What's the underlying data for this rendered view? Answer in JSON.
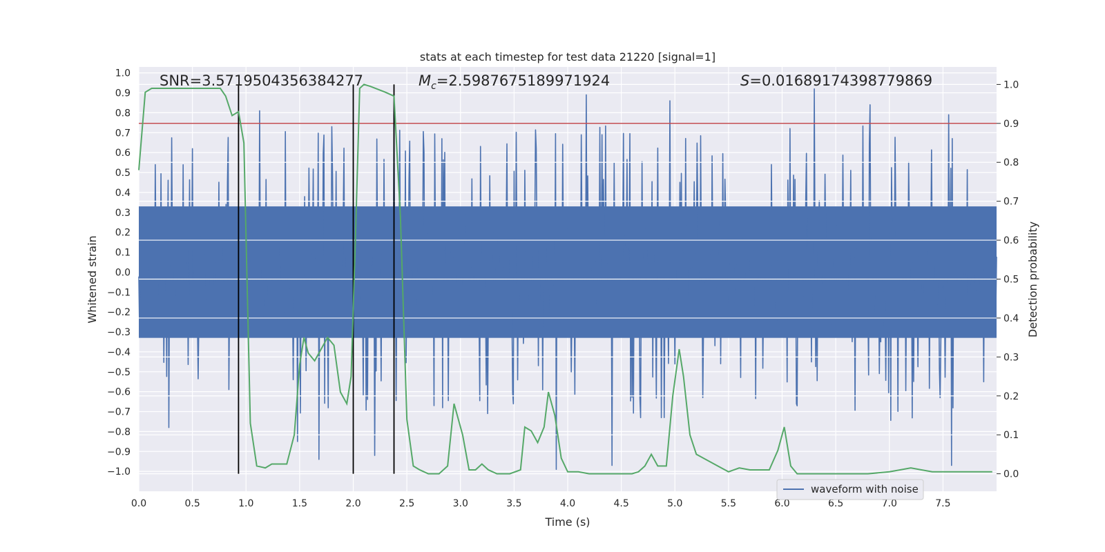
{
  "chart_data": {
    "type": "line",
    "title": "stats at each timestep for test data 21220 [signal=1]",
    "xlabel": "Time (s)",
    "ylabel_left": "Whitened strain",
    "ylabel_right": "Detection probability",
    "xlim": [
      0,
      8
    ],
    "ylim_left": [
      -1.1,
      1.03
    ],
    "ylim_right": [
      -0.045,
      1.045
    ],
    "x_ticks": [
      "0.0",
      "0.5",
      "1.0",
      "1.5",
      "2.0",
      "2.5",
      "3.0",
      "3.5",
      "4.0",
      "4.5",
      "5.0",
      "5.5",
      "6.0",
      "6.5",
      "7.0",
      "7.5"
    ],
    "x_tick_values": [
      0,
      0.5,
      1,
      1.5,
      2,
      2.5,
      3,
      3.5,
      4,
      4.5,
      5,
      5.5,
      6,
      6.5,
      7,
      7.5
    ],
    "y_left_ticks": [
      "1.0",
      "0.9",
      "0.8",
      "0.7",
      "0.6",
      "0.5",
      "0.4",
      "0.3",
      "0.2",
      "0.1",
      "0.0",
      "−0.1",
      "−0.2",
      "−0.3",
      "−0.4",
      "−0.5",
      "−0.6",
      "−0.7",
      "−0.8",
      "−0.9",
      "−1.0"
    ],
    "y_left_tick_values": [
      1,
      0.9,
      0.8,
      0.7,
      0.6,
      0.5,
      0.4,
      0.3,
      0.2,
      0.1,
      0,
      -0.1,
      -0.2,
      -0.3,
      -0.4,
      -0.5,
      -0.6,
      -0.7,
      -0.8,
      -0.9,
      -1.0
    ],
    "y_right_ticks": [
      "1.0",
      "0.9",
      "0.8",
      "0.7",
      "0.6",
      "0.5",
      "0.4",
      "0.3",
      "0.2",
      "0.1",
      "0.0"
    ],
    "y_right_tick_values": [
      1,
      0.9,
      0.8,
      0.7,
      0.6,
      0.5,
      0.4,
      0.3,
      0.2,
      0.1,
      0
    ],
    "annotations": {
      "snr": "SNR=3.5719504356384277",
      "mc_symbol": "M",
      "mc_sub": "c",
      "mc_value": "=2.5987675189971924",
      "s_symbol": "S",
      "s_value": "=0.01689174398779869"
    },
    "threshold": {
      "value": 0.9,
      "axis": "right",
      "color": "#c44e52"
    },
    "vertical_markers_x": [
      0.93,
      2.0,
      2.38
    ],
    "waveform": {
      "name": "waveform with noise",
      "color": "#4c72b0",
      "n_samples": 1200,
      "seed": 21220,
      "core_amplitude": 0.33,
      "spikes": [
        {
          "x": 0.5,
          "y": 0.62
        },
        {
          "x": 1.13,
          "y": 0.81
        },
        {
          "x": 2.38,
          "y": 0.81
        },
        {
          "x": 4.17,
          "y": 0.89
        },
        {
          "x": 4.95,
          "y": 0.86
        },
        {
          "x": 6.3,
          "y": 0.92
        },
        {
          "x": 6.82,
          "y": 0.84
        },
        {
          "x": 7.55,
          "y": 0.79
        },
        {
          "x": 0.28,
          "y": -0.78
        },
        {
          "x": 1.68,
          "y": -0.94
        },
        {
          "x": 3.89,
          "y": -0.99
        },
        {
          "x": 4.41,
          "y": -0.97
        },
        {
          "x": 7.58,
          "y": -0.97
        },
        {
          "x": 2.2,
          "y": -0.92
        },
        {
          "x": 1.48,
          "y": -0.85
        }
      ]
    },
    "series": [
      {
        "name": "detection probability",
        "axis": "right",
        "color": "#55a868",
        "x": [
          0.0,
          0.06,
          0.12,
          0.2,
          0.3,
          0.4,
          0.5,
          0.6,
          0.7,
          0.76,
          0.81,
          0.87,
          0.93,
          0.98,
          1.04,
          1.1,
          1.18,
          1.24,
          1.32,
          1.38,
          1.45,
          1.5,
          1.54,
          1.58,
          1.64,
          1.7,
          1.76,
          1.82,
          1.88,
          1.94,
          1.98,
          2.02,
          2.06,
          2.1,
          2.16,
          2.3,
          2.38,
          2.44,
          2.5,
          2.56,
          2.62,
          2.7,
          2.8,
          2.88,
          2.94,
          3.02,
          3.08,
          3.14,
          3.2,
          3.26,
          3.34,
          3.46,
          3.56,
          3.6,
          3.66,
          3.72,
          3.78,
          3.82,
          3.88,
          3.94,
          4.0,
          4.1,
          4.2,
          4.3,
          4.4,
          4.5,
          4.6,
          4.66,
          4.72,
          4.78,
          4.84,
          4.92,
          4.98,
          5.04,
          5.08,
          5.14,
          5.2,
          5.4,
          5.5,
          5.6,
          5.7,
          5.8,
          5.88,
          5.96,
          6.02,
          6.08,
          6.14,
          6.2,
          6.5,
          6.8,
          7.0,
          7.1,
          7.2,
          7.3,
          7.4,
          7.5,
          7.6,
          7.7,
          7.8,
          7.9,
          7.96
        ],
        "y": [
          0.78,
          0.98,
          0.99,
          0.99,
          0.99,
          0.99,
          0.99,
          0.99,
          0.99,
          0.99,
          0.97,
          0.92,
          0.93,
          0.85,
          0.13,
          0.02,
          0.015,
          0.025,
          0.025,
          0.025,
          0.1,
          0.28,
          0.35,
          0.31,
          0.29,
          0.32,
          0.35,
          0.33,
          0.21,
          0.18,
          0.25,
          0.6,
          0.99,
          1.0,
          0.995,
          0.98,
          0.97,
          0.66,
          0.14,
          0.02,
          0.01,
          0.0,
          0.0,
          0.02,
          0.18,
          0.1,
          0.01,
          0.01,
          0.025,
          0.01,
          0.0,
          0.0,
          0.01,
          0.12,
          0.11,
          0.08,
          0.12,
          0.21,
          0.15,
          0.04,
          0.005,
          0.005,
          0.0,
          0.0,
          0.0,
          0.0,
          0.0,
          0.005,
          0.02,
          0.05,
          0.02,
          0.02,
          0.2,
          0.32,
          0.25,
          0.1,
          0.05,
          0.02,
          0.005,
          0.015,
          0.01,
          0.01,
          0.01,
          0.06,
          0.12,
          0.02,
          0.0,
          0.0,
          0.0,
          0.0,
          0.005,
          0.01,
          0.015,
          0.01,
          0.005,
          0.005,
          0.005,
          0.005,
          0.005,
          0.005,
          0.005
        ]
      }
    ],
    "legend": {
      "label": "waveform with noise",
      "placement": "lower-right"
    }
  }
}
